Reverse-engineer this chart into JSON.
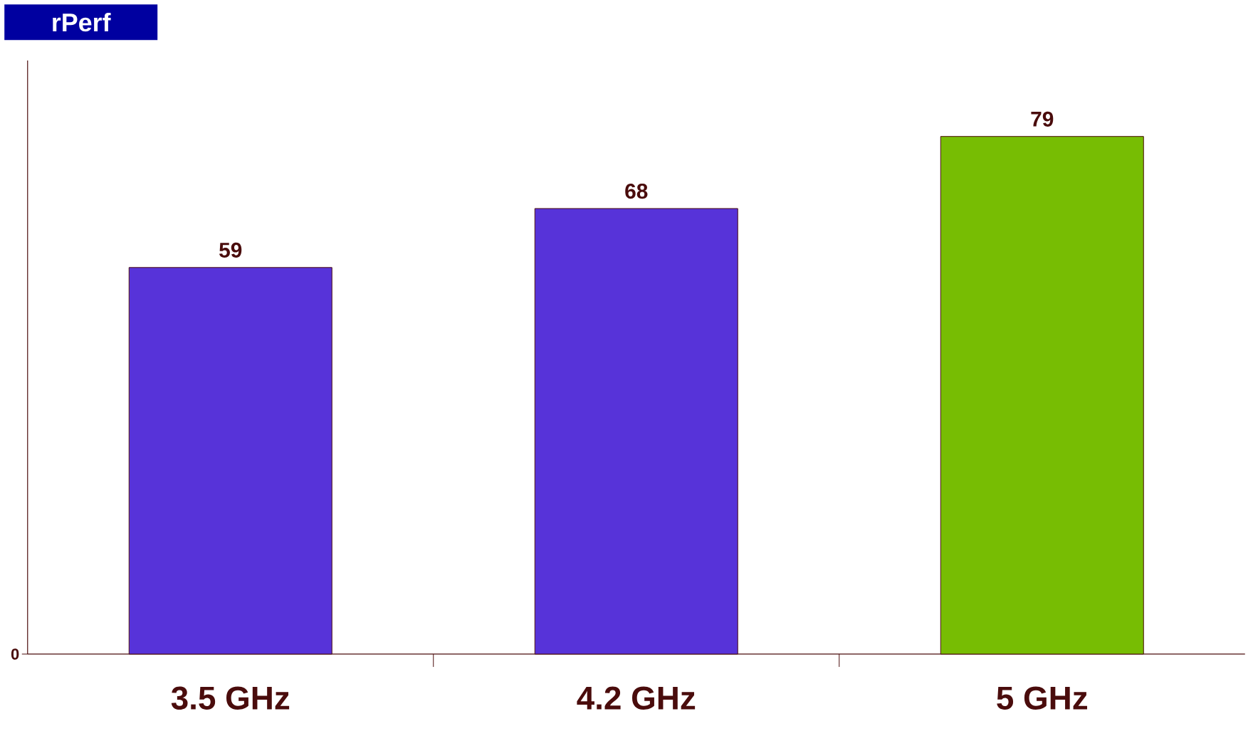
{
  "chart_data": {
    "type": "bar",
    "title": "rPerf",
    "categories": [
      "3.5 GHz",
      "4.2 GHz",
      "5 GHz"
    ],
    "values": [
      59,
      68,
      79
    ],
    "colors": [
      "#5733d9",
      "#5733d9",
      "#77bd03"
    ],
    "ylim": [
      0,
      90.6
    ],
    "annotations": [
      "0"
    ],
    "data_labels": true
  }
}
